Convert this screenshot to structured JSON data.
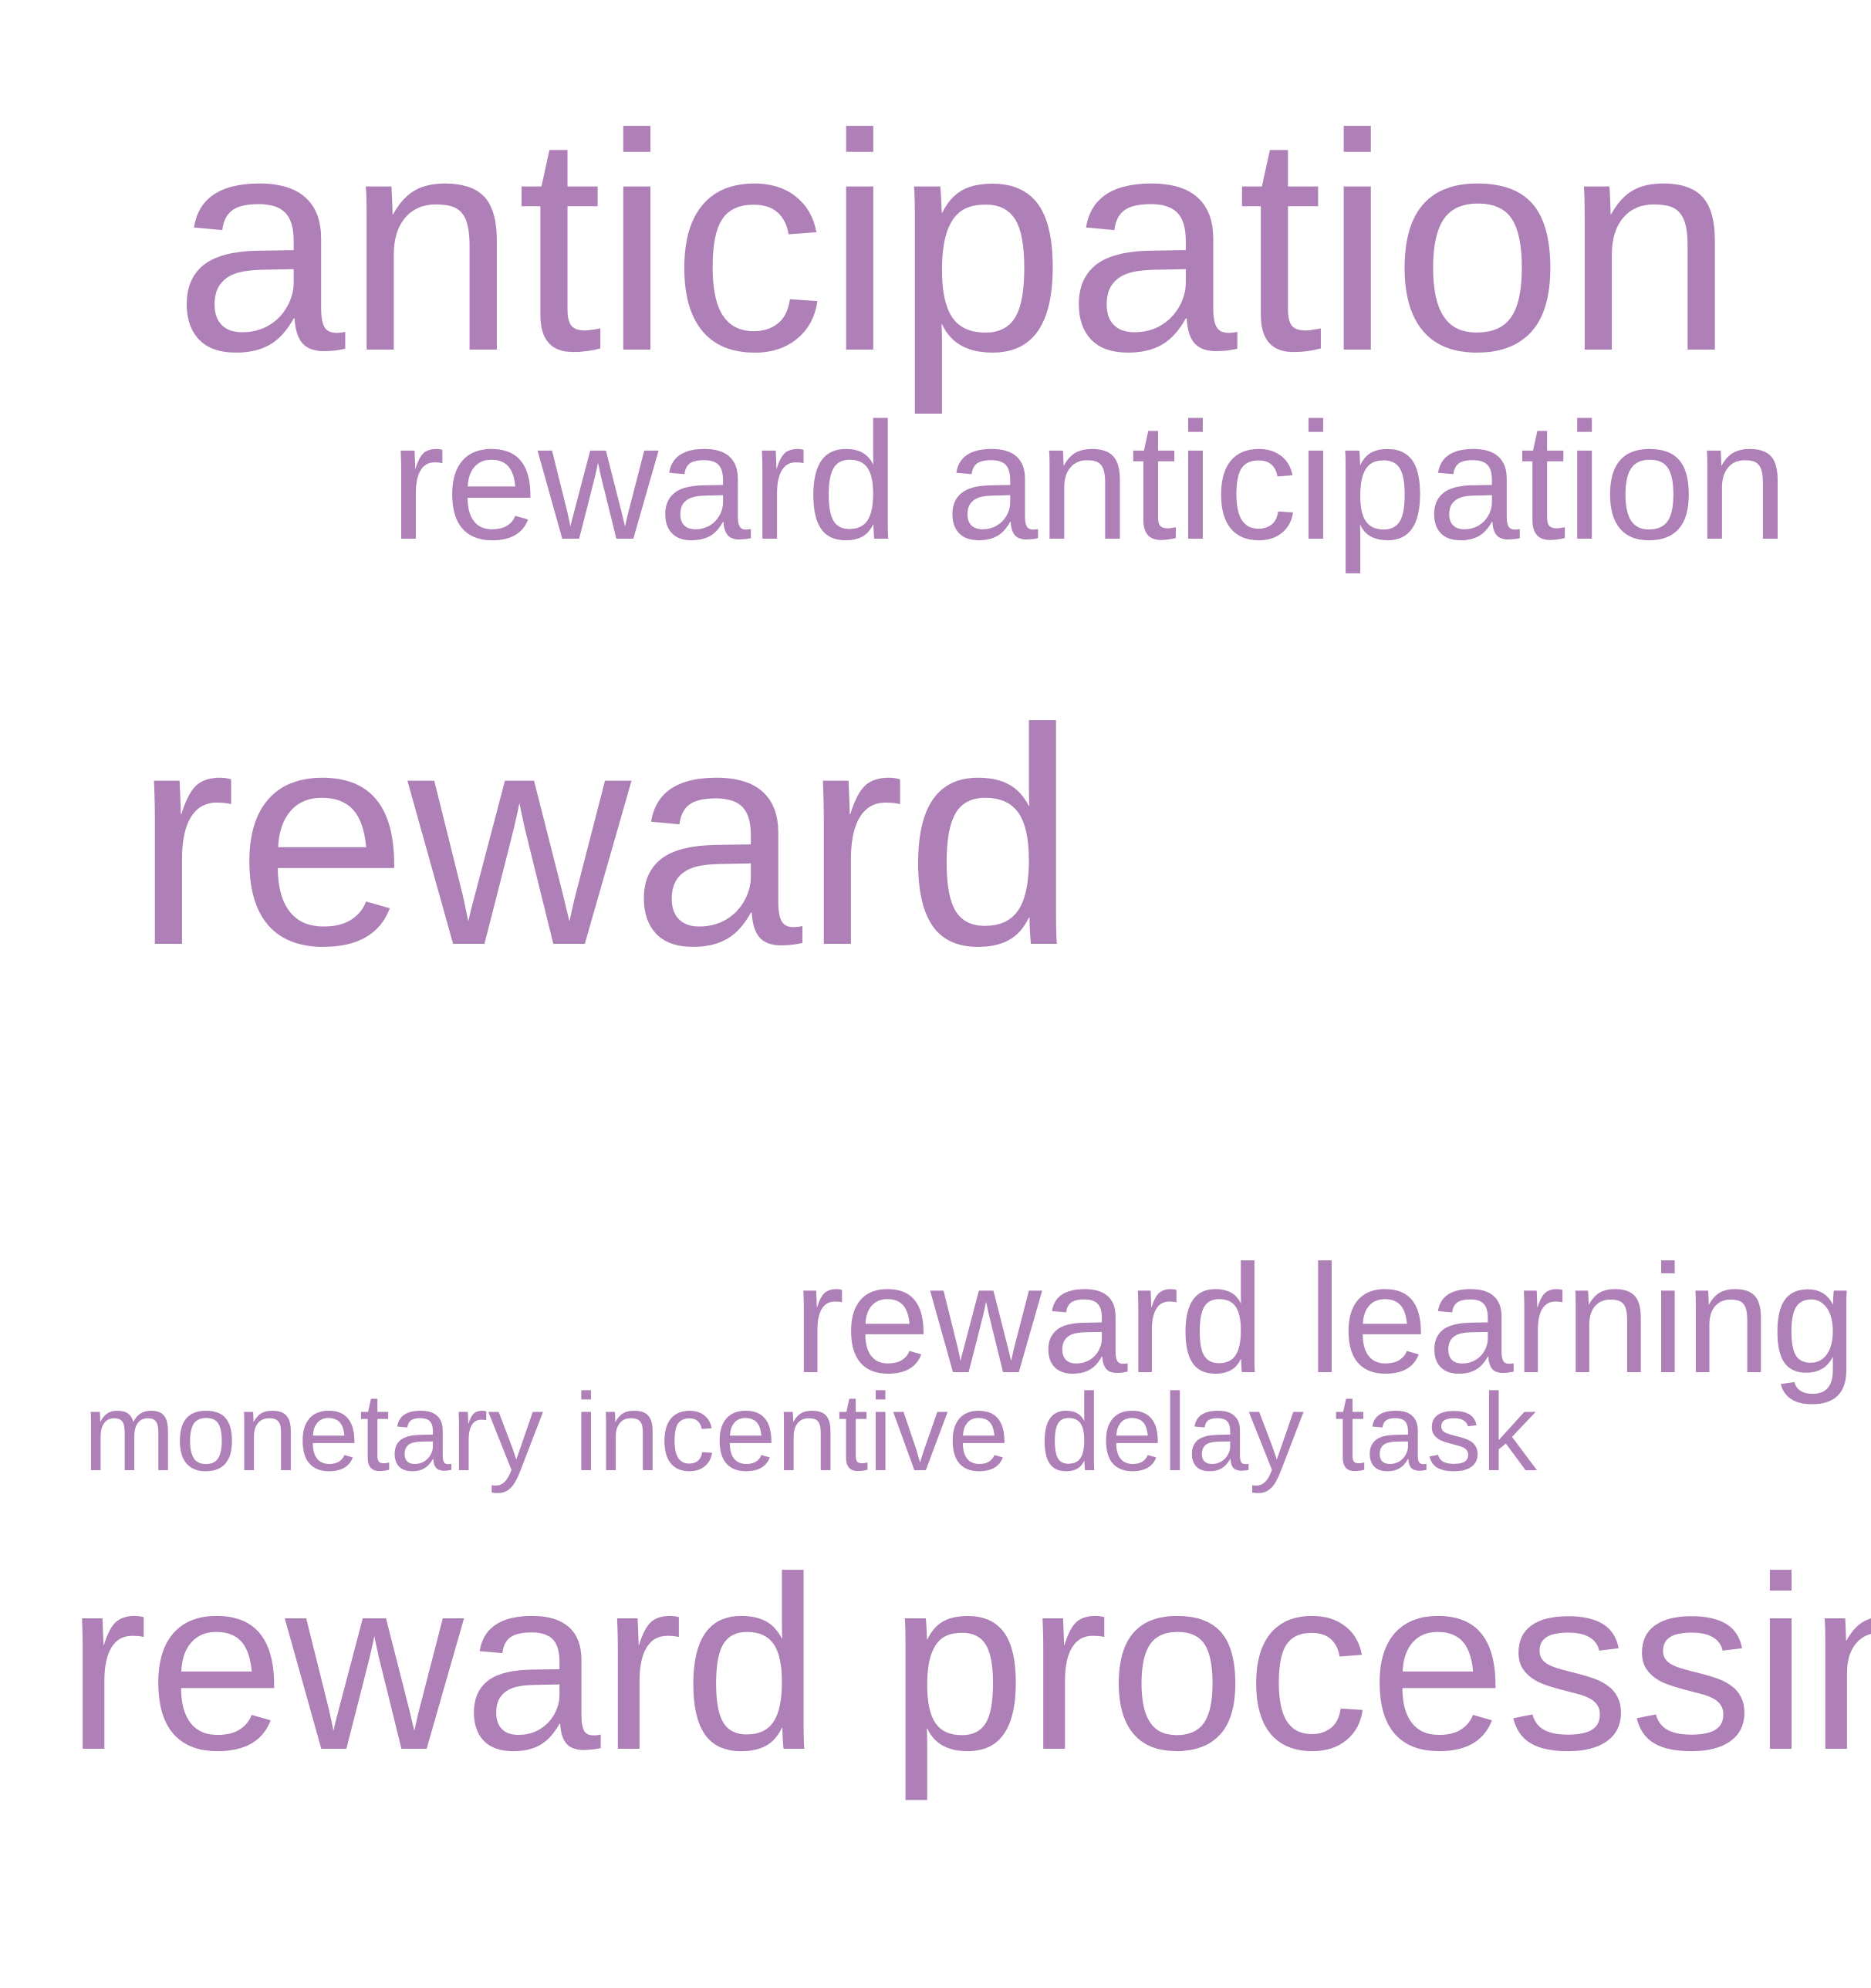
{
  "word_cloud": {
    "color": "#af7fb7",
    "words": [
      {
        "text": "anticipation"
      },
      {
        "text": "reward anticipation"
      },
      {
        "text": "reward"
      },
      {
        "text": "reward learning"
      },
      {
        "text": "monetary incentive delay task"
      },
      {
        "text": "reward processing"
      }
    ]
  }
}
